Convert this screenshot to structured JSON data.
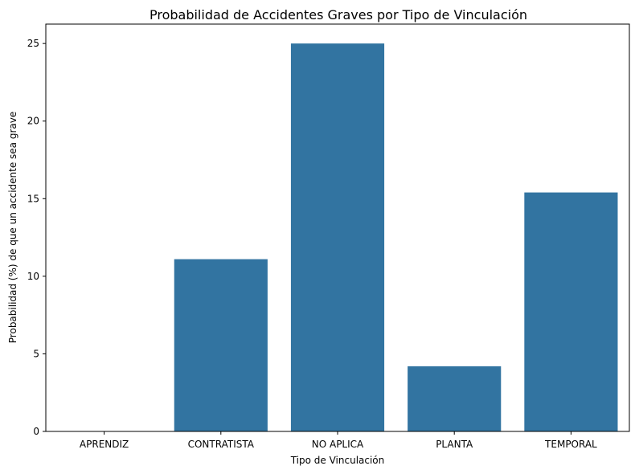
{
  "chart_data": {
    "type": "bar",
    "title": "Probabilidad de Accidentes Graves por Tipo de Vinculación",
    "xlabel": "Tipo de Vinculación",
    "ylabel": "Probabilidad (%) de que un accidente sea grave",
    "categories": [
      "APRENDIZ",
      "CONTRATISTA",
      "NO APLICA",
      "PLANTA",
      "TEMPORAL"
    ],
    "values": [
      0,
      11.1,
      25.0,
      4.2,
      15.4
    ],
    "ylim": [
      0,
      26.25
    ],
    "yticks": [
      0,
      5,
      10,
      15,
      20,
      25
    ],
    "grid": false,
    "bar_color": "#3274a1"
  }
}
